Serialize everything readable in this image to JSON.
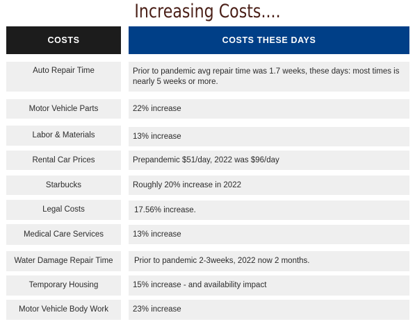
{
  "title": "Increasing Costs....",
  "headers": {
    "left": "COSTS",
    "right": "COSTS THESE DAYS"
  },
  "rows": [
    {
      "cost": "Auto Repair Time",
      "detail": "Prior to pandemic avg repair time was 1.7 weeks, these days: most times is nearly 5 weeks or more."
    },
    {
      "cost": "Motor Vehicle Parts",
      "detail": "22% increase"
    },
    {
      "cost": "Labor & Materials",
      "detail": "13% increase"
    },
    {
      "cost": "Rental Car Prices",
      "detail": "Prepandemic $51/day, 2022 was $96/day"
    },
    {
      "cost": "Starbucks",
      "detail": "Roughly 20% increase in 2022"
    },
    {
      "cost": "Legal Costs",
      "detail": "17.56% increase."
    },
    {
      "cost": "Medical Care Services",
      "detail": "13% increase"
    },
    {
      "cost": "Water Damage Repair Time",
      "detail": "Prior to pandemic 2-3weeks, 2022 now 2 months."
    },
    {
      "cost": "Temporary Housing",
      "detail": "15% increase - and availability impact"
    },
    {
      "cost": "Motor Vehicle Body Work",
      "detail": "23% increase"
    }
  ]
}
